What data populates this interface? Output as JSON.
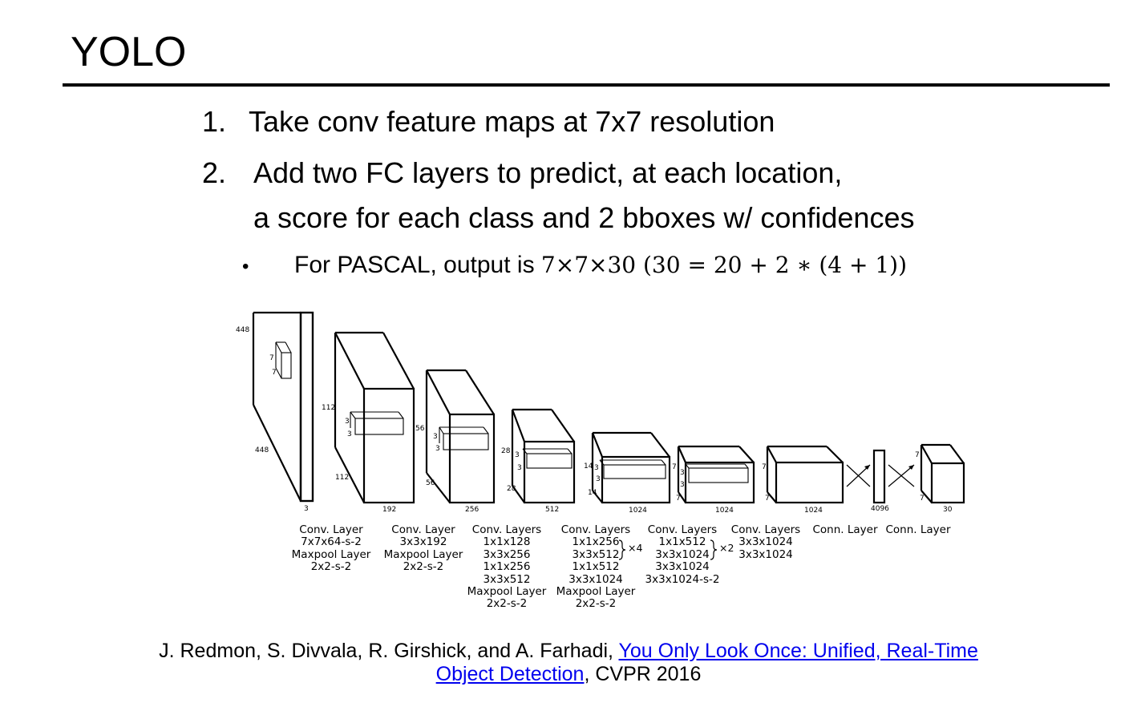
{
  "title": "YOLO",
  "points": [
    {
      "num": "1.",
      "text": "Take conv feature maps at 7x7 resolution"
    },
    {
      "num": "2.",
      "text": "Add two FC layers to  predict, at each location,"
    },
    {
      "num": "",
      "text": "a score for each class and 2 bboxes w/ confidences"
    }
  ],
  "sub_point": {
    "bullet": "•",
    "text": "For PASCAL, output is ",
    "math": "7×7×30 (30 = 20 + 2 ∗ (4 + 1))"
  },
  "diagram": {
    "input_dims": {
      "width": "448",
      "height": "448",
      "depth": "3",
      "kernel_a": "7",
      "kernel_b": "7"
    },
    "block1": {
      "width": "112",
      "height": "112",
      "depth": "192",
      "kernel_a": "3",
      "kernel_b": "3"
    },
    "block2": {
      "width": "56",
      "height": "56",
      "depth": "256",
      "kernel_a": "3",
      "kernel_b": "3"
    },
    "block3": {
      "width": "28",
      "height": "28",
      "depth": "512",
      "kernel_a": "3",
      "kernel_b": "3"
    },
    "block4": {
      "width": "14",
      "height": "14",
      "depth": "1024",
      "kernel_a": "3",
      "kernel_b": "3"
    },
    "block5": {
      "width": "7",
      "height": "7",
      "depth": "1024",
      "kernel_a": "3",
      "kernel_b": "3"
    },
    "block6": {
      "width": "7",
      "height": "7",
      "depth": "1024"
    },
    "fc1": {
      "depth": "4096"
    },
    "fc2": {
      "width": "7",
      "height": "7",
      "depth": "30"
    },
    "captions": [
      [
        "Conv. Layer",
        "7x7x64-s-2",
        "Maxpool Layer",
        "2x2-s-2"
      ],
      [
        "Conv. Layer",
        "3x3x192",
        "Maxpool Layer",
        "2x2-s-2"
      ],
      [
        "Conv. Layers",
        "1x1x128",
        "3x3x256",
        "1x1x256",
        "3x3x512",
        "Maxpool Layer",
        "2x2-s-2"
      ],
      [
        "Conv. Layers",
        "1x1x256",
        "3x3x512",
        "1x1x512",
        "3x3x1024",
        "Maxpool Layer",
        "2x2-s-2"
      ],
      [
        "Conv. Layers",
        "1x1x512",
        "3x3x1024",
        "3x3x1024",
        "3x3x1024-s-2"
      ],
      [
        "Conv. Layers",
        "3x3x1024",
        "3x3x1024"
      ],
      [
        "Conn. Layer"
      ],
      [
        "Conn. Layer"
      ]
    ],
    "repeat_a": "×4",
    "repeat_b": "×2"
  },
  "citation": {
    "authors": "J. Redmon, S. Divvala, R. Girshick, and A. Farhadi, ",
    "link_line1": "You Only Look Once: Unified, Real-Time ",
    "link_line2": "Object Detection",
    "venue": ", CVPR 2016"
  }
}
